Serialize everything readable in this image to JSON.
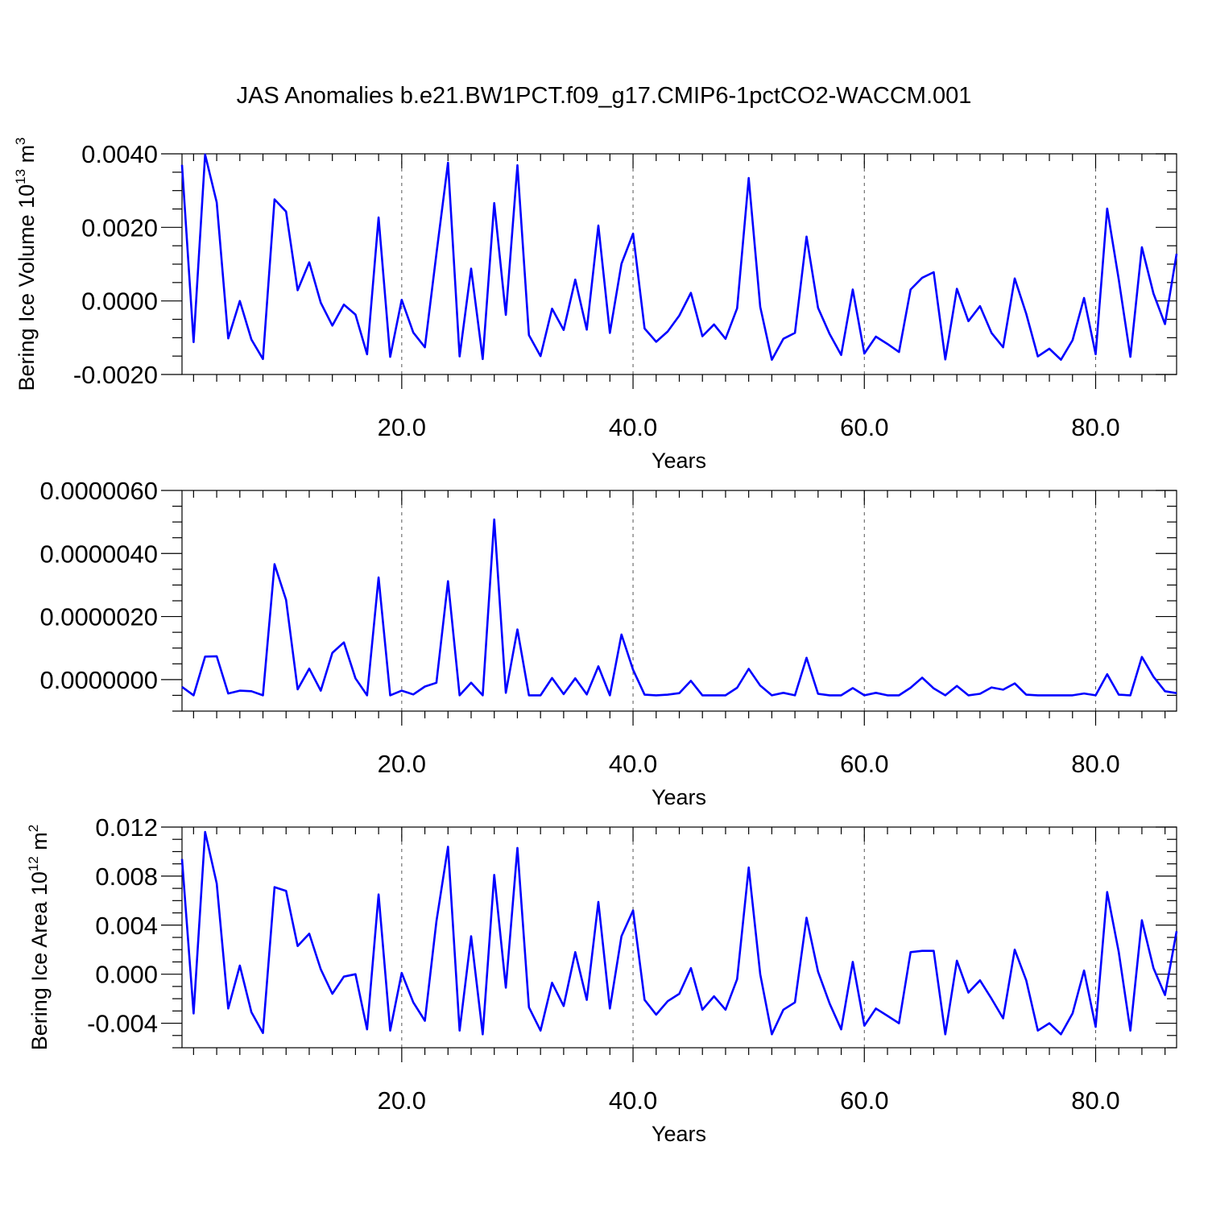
{
  "title": "JAS Anomalies b.e21.BW1PCT.f09_g17.CMIP6-1pctCO2-WACCM.001",
  "colors": {
    "series": "#0000ff",
    "frame": "#000000",
    "grid": "#555555"
  },
  "chart_data": [
    {
      "type": "line",
      "xlabel": "Years",
      "ylabel": "Bering Ice Volume 10",
      "ylabel_sup": "13",
      "ylabel_unit": " m",
      "ylabel_unit_sup": "3",
      "xlim": [
        1,
        87
      ],
      "ylim": [
        -0.002,
        0.004
      ],
      "xticks": [
        20,
        40,
        60,
        80
      ],
      "xtick_labels": [
        "20.0",
        "40.0",
        "60.0",
        "80.0"
      ],
      "yticks": [
        -0.002,
        0.0,
        0.002,
        0.004
      ],
      "ytick_labels": [
        "-0.0020",
        "0.0000",
        "0.0020",
        "0.0040"
      ],
      "grid": "vertical dashed",
      "series": [
        {
          "x": [
            1,
            2,
            3,
            4,
            5,
            6,
            7,
            8,
            9,
            10,
            11,
            12,
            13,
            14,
            15,
            16,
            17,
            18,
            19,
            20,
            21,
            22,
            23,
            24,
            25,
            26,
            27,
            28,
            29,
            30,
            31,
            32,
            33,
            34,
            35,
            36,
            37,
            38,
            39,
            40,
            41,
            42,
            43,
            44,
            45,
            46,
            47,
            48,
            49,
            50,
            51,
            52,
            53,
            54,
            55,
            56,
            57,
            58,
            59,
            60,
            61,
            62,
            63,
            64,
            65,
            66,
            67,
            68,
            69,
            70,
            71,
            72,
            73,
            74,
            75,
            76,
            77,
            78,
            79,
            80,
            81,
            82,
            83,
            84,
            85,
            86,
            87
          ],
          "values": [
            0.0037,
            -0.00112,
            0.00398,
            0.00268,
            -0.00102,
            0.0,
            -0.00105,
            -0.00158,
            0.00276,
            0.00243,
            0.00029,
            0.00105,
            -5e-05,
            -0.00067,
            -0.0001,
            -0.00037,
            -0.00145,
            0.00227,
            -0.00152,
            3e-05,
            -0.00086,
            -0.00126,
            0.00128,
            0.00376,
            -0.00151,
            0.00088,
            -0.00158,
            0.00266,
            -0.00038,
            0.00369,
            -0.00093,
            -0.0015,
            -0.00021,
            -0.00079,
            0.00058,
            -0.00078,
            0.00205,
            -0.00087,
            0.00101,
            0.00183,
            -0.00075,
            -0.00111,
            -0.00083,
            -0.0004,
            0.00022,
            -0.00096,
            -0.00064,
            -0.00103,
            -0.0002,
            0.00334,
            -0.00016,
            -0.0016,
            -0.00103,
            -0.00087,
            0.00175,
            -0.00019,
            -0.0009,
            -0.00147,
            0.00031,
            -0.00143,
            -0.00097,
            -0.00117,
            -0.00139,
            0.00031,
            0.00063,
            0.00078,
            -0.00159,
            0.00033,
            -0.00055,
            -0.00014,
            -0.00087,
            -0.00126,
            0.00061,
            -0.00035,
            -0.00151,
            -0.0013,
            -0.0016,
            -0.00107,
            8e-05,
            -0.00145,
            0.00251,
            0.00058,
            -0.00152,
            0.00146,
            0.0002,
            -0.00063,
            0.00128
          ]
        }
      ]
    },
    {
      "type": "line",
      "xlabel": "Years",
      "ylabel": "",
      "xlim": [
        1,
        87
      ],
      "ylim": [
        -1e-06,
        6e-06
      ],
      "xticks": [
        20,
        40,
        60,
        80
      ],
      "xtick_labels": [
        "20.0",
        "40.0",
        "60.0",
        "80.0"
      ],
      "yticks": [
        0.0,
        2e-06,
        4e-06,
        6e-06
      ],
      "ytick_labels": [
        "0.0000000",
        "0.0000020",
        "0.0000040",
        "0.0000060"
      ],
      "grid": "vertical dashed",
      "series": [
        {
          "x": [
            1,
            2,
            3,
            4,
            5,
            6,
            7,
            8,
            9,
            10,
            11,
            12,
            13,
            14,
            15,
            16,
            17,
            18,
            19,
            20,
            21,
            22,
            23,
            24,
            25,
            26,
            27,
            28,
            29,
            30,
            31,
            32,
            33,
            34,
            35,
            36,
            37,
            38,
            39,
            40,
            41,
            42,
            43,
            44,
            45,
            46,
            47,
            48,
            49,
            50,
            51,
            52,
            53,
            54,
            55,
            56,
            57,
            58,
            59,
            60,
            61,
            62,
            63,
            64,
            65,
            66,
            67,
            68,
            69,
            70,
            71,
            72,
            73,
            74,
            75,
            76,
            77,
            78,
            79,
            80,
            81,
            82,
            83,
            84,
            85,
            86,
            87
          ],
          "values": [
            -2.3e-07,
            -5e-07,
            7.3e-07,
            7.4e-07,
            -4.4e-07,
            -3.5e-07,
            -3.7e-07,
            -5e-07,
            3.66e-06,
            2.53e-06,
            -3.1e-07,
            3.5e-07,
            -3.5e-07,
            8.5e-07,
            1.18e-06,
            4e-08,
            -5e-07,
            3.24e-06,
            -5e-07,
            -3.5e-07,
            -4.7e-07,
            -2.2e-07,
            -1e-07,
            3.12e-06,
            -5e-07,
            -1e-07,
            -5e-07,
            5.08e-06,
            -4.2e-07,
            1.59e-06,
            -5e-07,
            -5e-07,
            5e-08,
            -4.6e-07,
            4e-08,
            -4.7e-07,
            4.2e-07,
            -5e-07,
            1.43e-06,
            3.1e-07,
            -4.8e-07,
            -5e-07,
            -4.8e-07,
            -4.3e-07,
            -4e-08,
            -5e-07,
            -5e-07,
            -5e-07,
            -2.6e-07,
            3.4e-07,
            -1.9e-07,
            -5e-07,
            -4.2e-07,
            -5e-07,
            6.9e-07,
            -4.5e-07,
            -5e-07,
            -5e-07,
            -2.7e-07,
            -5e-07,
            -4.2e-07,
            -5e-07,
            -5e-07,
            -2.6e-07,
            6e-08,
            -2.8e-07,
            -5e-07,
            -2e-07,
            -5e-07,
            -4.5e-07,
            -2.5e-07,
            -3.2e-07,
            -1.2e-07,
            -4.8e-07,
            -5e-07,
            -5e-07,
            -5e-07,
            -5e-07,
            -4.4e-07,
            -5e-07,
            1.7e-07,
            -4.8e-07,
            -5e-07,
            7.2e-07,
            9e-08,
            -3.7e-07,
            -4.3e-07
          ]
        }
      ]
    },
    {
      "type": "line",
      "xlabel": "Years",
      "ylabel": "Bering Ice Area 10",
      "ylabel_sup": "12",
      "ylabel_unit": " m",
      "ylabel_unit_sup": "2",
      "xlim": [
        1,
        87
      ],
      "ylim": [
        -0.006,
        0.012
      ],
      "xticks": [
        20,
        40,
        60,
        80
      ],
      "xtick_labels": [
        "20.0",
        "40.0",
        "60.0",
        "80.0"
      ],
      "yticks": [
        -0.004,
        0.0,
        0.004,
        0.008,
        0.012
      ],
      "ytick_labels": [
        "-0.004",
        "0.000",
        "0.004",
        "0.008",
        "0.012"
      ],
      "grid": "vertical dashed",
      "series": [
        {
          "x": [
            1,
            2,
            3,
            4,
            5,
            6,
            7,
            8,
            9,
            10,
            11,
            12,
            13,
            14,
            15,
            16,
            17,
            18,
            19,
            20,
            21,
            22,
            23,
            24,
            25,
            26,
            27,
            28,
            29,
            30,
            31,
            32,
            33,
            34,
            35,
            36,
            37,
            38,
            39,
            40,
            41,
            42,
            43,
            44,
            45,
            46,
            47,
            48,
            49,
            50,
            51,
            52,
            53,
            54,
            55,
            56,
            57,
            58,
            59,
            60,
            61,
            62,
            63,
            64,
            65,
            66,
            67,
            68,
            69,
            70,
            71,
            72,
            73,
            74,
            75,
            76,
            77,
            78,
            79,
            80,
            81,
            82,
            83,
            84,
            85,
            86,
            87
          ],
          "values": [
            0.0094,
            -0.0032,
            0.0116,
            0.0074,
            -0.0028,
            0.0007,
            -0.0031,
            -0.0048,
            0.0071,
            0.0068,
            0.0023,
            0.0033,
            0.0004,
            -0.0016,
            -0.0002,
            0.0,
            -0.0045,
            0.0065,
            -0.0046,
            0.0001,
            -0.0023,
            -0.0038,
            0.0043,
            0.0104,
            -0.0046,
            0.0031,
            -0.0049,
            0.0081,
            -0.0011,
            0.0103,
            -0.0027,
            -0.0046,
            -0.0007,
            -0.0026,
            0.0018,
            -0.0021,
            0.0059,
            -0.0028,
            0.0031,
            0.0052,
            -0.0021,
            -0.0033,
            -0.0022,
            -0.0016,
            0.0005,
            -0.0029,
            -0.0018,
            -0.0029,
            -0.0004,
            0.0087,
            0.0,
            -0.0049,
            -0.0029,
            -0.0023,
            0.0046,
            0.0002,
            -0.0024,
            -0.0045,
            0.001,
            -0.0042,
            -0.0028,
            -0.0034,
            -0.004,
            0.0018,
            0.0019,
            0.0019,
            -0.0049,
            0.0011,
            -0.0015,
            -0.0005,
            -0.002,
            -0.0036,
            0.002,
            -0.0005,
            -0.0046,
            -0.004,
            -0.0049,
            -0.0032,
            0.0003,
            -0.0043,
            0.0067,
            0.0018,
            -0.0046,
            0.0044,
            0.0005,
            -0.0017,
            0.0035
          ]
        }
      ]
    }
  ]
}
